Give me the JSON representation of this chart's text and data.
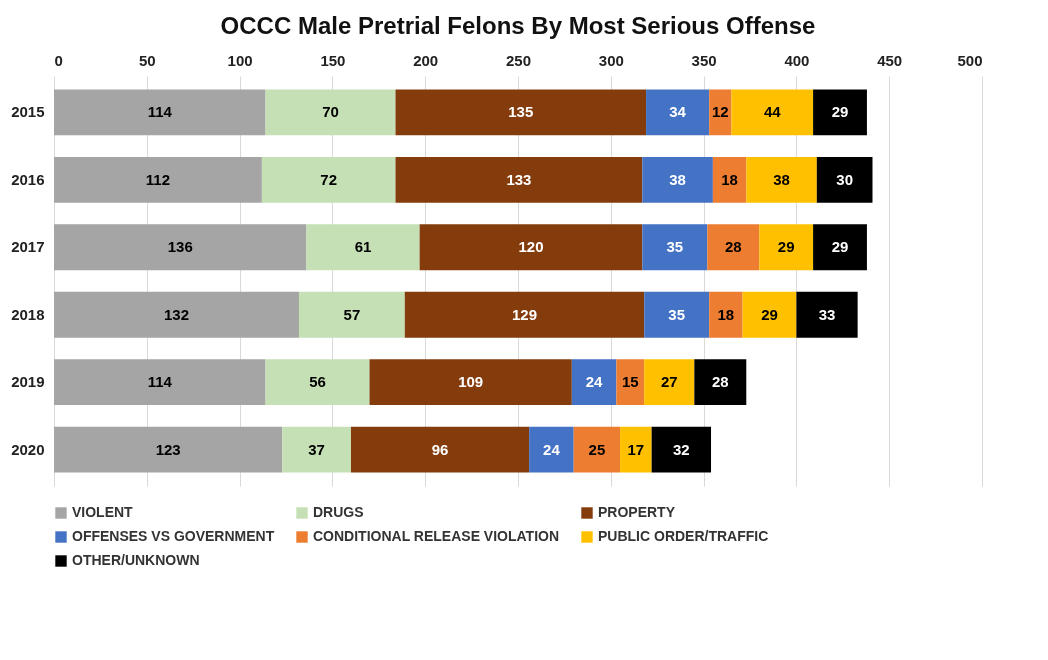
{
  "chart_data": {
    "type": "bar",
    "orientation": "horizontal",
    "stacked": true,
    "title": "OCCC Male Pretrial Felons By Most Serious Offense",
    "categories": [
      "2015",
      "2016",
      "2017",
      "2018",
      "2019",
      "2020"
    ],
    "series": [
      {
        "name": "VIOLENT",
        "color": "#a5a5a5",
        "values": [
          114,
          112,
          136,
          132,
          114,
          123
        ]
      },
      {
        "name": "DRUGS",
        "color": "#c5e0b4",
        "values": [
          70,
          72,
          61,
          57,
          56,
          37
        ]
      },
      {
        "name": "PROPERTY",
        "color": "#843c0c",
        "values": [
          135,
          133,
          120,
          129,
          109,
          96
        ]
      },
      {
        "name": "OFFENSES VS GOVERNMENT",
        "color": "#4472c4",
        "values": [
          34,
          38,
          35,
          35,
          24,
          24
        ]
      },
      {
        "name": "CONDITIONAL RELEASE VIOLATION",
        "color": "#ed7d31",
        "values": [
          12,
          18,
          28,
          18,
          15,
          25
        ]
      },
      {
        "name": "PUBLIC ORDER/TRAFFIC",
        "color": "#ffc000",
        "values": [
          44,
          38,
          29,
          29,
          27,
          17
        ]
      },
      {
        "name": "OTHER/UNKNOWN",
        "color": "#000000",
        "values": [
          29,
          30,
          29,
          33,
          28,
          32
        ]
      }
    ],
    "xlim": [
      0,
      500
    ],
    "xticks": [
      0,
      50,
      100,
      150,
      200,
      250,
      300,
      350,
      400,
      450,
      500
    ],
    "grid": "x",
    "legend": "bottom",
    "data_labels": true
  }
}
